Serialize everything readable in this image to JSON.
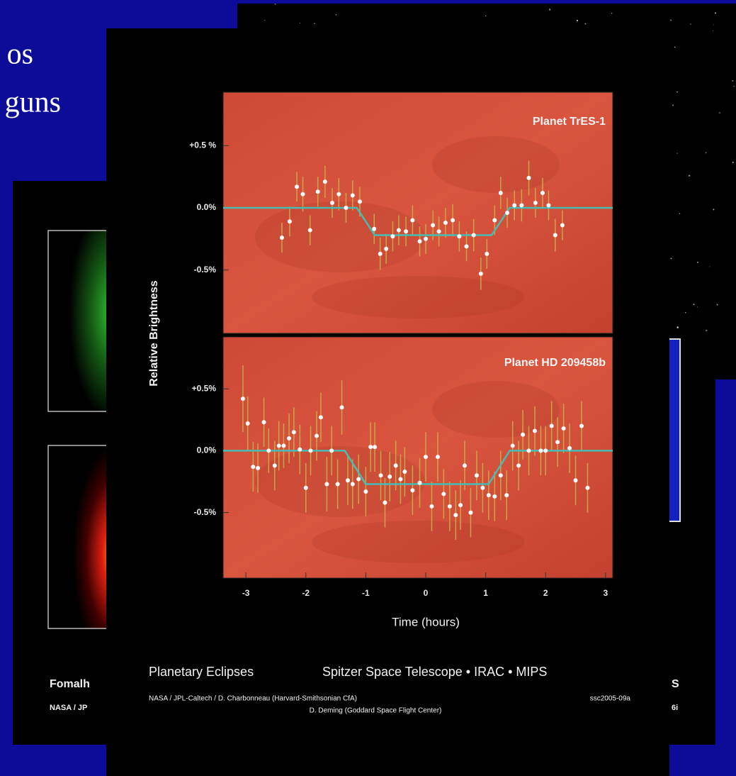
{
  "slide": {
    "text_lines": [
      "os",
      "guns"
    ]
  },
  "left_card": {
    "title": "Fomalh",
    "credit": "NASA / JP"
  },
  "right_card": {
    "title": "S",
    "credit": "6i"
  },
  "figure": {
    "title": "Planetary Eclipses",
    "subtitle": "Spitzer Space Telescope • IRAC • MIPS",
    "credits": [
      "NASA / JPL-Caltech / D. Charbonneau (Harvard-Smithsonian CfA)",
      "D. Deming (Goddard Space Flight Center)"
    ],
    "id": "ssc2005-09a",
    "ylabel": "Relative Brightness",
    "xlabel": "Time (hours)"
  },
  "chart_data": [
    {
      "type": "scatter",
      "title": "Planet TrES-1",
      "xlim": [
        -3.38,
        3.12
      ],
      "ylim": [
        -1.01,
        0.93
      ],
      "yticks": [
        {
          "value": 0.5,
          "label": "+0.5 %"
        },
        {
          "value": 0,
          "label": "0.0%"
        },
        {
          "value": -0.5,
          "label": "-0.5%"
        }
      ],
      "series": [
        {
          "color": "#ffffff",
          "error_color": "#c9a54a",
          "x": [
            -2.4,
            -2.27,
            -2.15,
            -2.05,
            -1.93,
            -1.8,
            -1.68,
            -1.56,
            -1.45,
            -1.33,
            -1.22,
            -1.1,
            -0.86,
            -0.76,
            -0.66,
            -0.55,
            -0.45,
            -0.33,
            -0.22,
            -0.1,
            0.0,
            0.12,
            0.22,
            0.33,
            0.45,
            0.56,
            0.68,
            0.8,
            0.92,
            1.02,
            1.15,
            1.25,
            1.36,
            1.48,
            1.6,
            1.72,
            1.83,
            1.95,
            2.05,
            2.16,
            2.28
          ],
          "values": [
            -0.24,
            -0.11,
            0.17,
            0.11,
            -0.18,
            0.13,
            0.21,
            0.04,
            0.11,
            0.0,
            0.1,
            0.05,
            -0.17,
            -0.37,
            -0.33,
            -0.23,
            -0.18,
            -0.19,
            -0.1,
            -0.27,
            -0.25,
            -0.14,
            -0.19,
            -0.12,
            -0.1,
            -0.23,
            -0.31,
            -0.22,
            -0.53,
            -0.37,
            -0.1,
            0.12,
            -0.04,
            0.02,
            0.02,
            0.24,
            0.04,
            0.12,
            0.02,
            -0.22,
            -0.14
          ],
          "errors": [
            0.12,
            0.12,
            0.12,
            0.14,
            0.12,
            0.12,
            0.13,
            0.12,
            0.13,
            0.12,
            0.12,
            0.12,
            0.12,
            0.13,
            0.12,
            0.12,
            0.12,
            0.12,
            0.12,
            0.12,
            0.12,
            0.12,
            0.12,
            0.12,
            0.13,
            0.12,
            0.12,
            0.13,
            0.13,
            0.12,
            0.12,
            0.13,
            0.12,
            0.12,
            0.13,
            0.14,
            0.12,
            0.12,
            0.12,
            0.13,
            0.12
          ]
        },
        {
          "type": "line",
          "color": "#45bdb4",
          "x": [
            -3.38,
            -1.15,
            -0.85,
            1.1,
            1.4,
            3.12
          ],
          "values": [
            0,
            0,
            -0.22,
            -0.22,
            0,
            0
          ]
        }
      ]
    },
    {
      "type": "scatter",
      "title": "Planet HD 209458b",
      "xlim": [
        -3.38,
        3.12
      ],
      "ylim": [
        -1.03,
        0.92
      ],
      "xticks": [
        -3,
        -2,
        -1,
        0,
        1,
        2,
        3
      ],
      "yticks": [
        {
          "value": 0.5,
          "label": "+0.5%"
        },
        {
          "value": 0,
          "label": "0.0%"
        },
        {
          "value": -0.5,
          "label": "-0.5%"
        }
      ],
      "series": [
        {
          "color": "#ffffff",
          "error_color": "#c9a54a",
          "x": [
            -3.05,
            -2.97,
            -2.88,
            -2.8,
            -2.7,
            -2.62,
            -2.52,
            -2.45,
            -2.37,
            -2.28,
            -2.2,
            -2.1,
            -2.0,
            -1.92,
            -1.82,
            -1.75,
            -1.65,
            -1.57,
            -1.47,
            -1.4,
            -1.3,
            -1.22,
            -1.12,
            -1.0,
            -0.92,
            -0.85,
            -0.75,
            -0.68,
            -0.6,
            -0.5,
            -0.42,
            -0.35,
            -0.22,
            -0.1,
            0.0,
            0.1,
            0.2,
            0.3,
            0.4,
            0.5,
            0.58,
            0.65,
            0.75,
            0.85,
            0.95,
            1.05,
            1.15,
            1.25,
            1.35,
            1.45,
            1.55,
            1.62,
            1.72,
            1.82,
            1.92,
            2.0,
            2.1,
            2.2,
            2.3,
            2.4,
            2.5,
            2.6,
            2.7
          ],
          "values": [
            0.42,
            0.22,
            -0.13,
            -0.14,
            0.23,
            0.0,
            -0.12,
            0.04,
            0.04,
            0.1,
            0.15,
            0.01,
            -0.3,
            0.0,
            0.12,
            0.27,
            -0.27,
            0.0,
            -0.27,
            0.35,
            -0.24,
            -0.27,
            -0.23,
            -0.33,
            0.03,
            0.03,
            -0.2,
            -0.42,
            -0.21,
            -0.12,
            -0.23,
            -0.17,
            -0.32,
            -0.26,
            -0.05,
            -0.45,
            -0.05,
            -0.35,
            -0.45,
            -0.52,
            -0.44,
            -0.12,
            -0.5,
            -0.2,
            -0.3,
            -0.36,
            -0.37,
            -0.2,
            -0.36,
            0.04,
            -0.12,
            0.13,
            0.0,
            0.16,
            0.0,
            0.0,
            0.2,
            0.07,
            0.18,
            0.02,
            -0.24,
            0.2,
            -0.3
          ],
          "errors": [
            0.27,
            0.22,
            0.2,
            0.2,
            0.2,
            0.18,
            0.2,
            0.2,
            0.18,
            0.2,
            0.2,
            0.2,
            0.2,
            0.2,
            0.2,
            0.2,
            0.22,
            0.2,
            0.2,
            0.22,
            0.2,
            0.2,
            0.2,
            0.2,
            0.2,
            0.2,
            0.2,
            0.2,
            0.2,
            0.2,
            0.2,
            0.2,
            0.2,
            0.2,
            0.2,
            0.2,
            0.2,
            0.2,
            0.2,
            0.2,
            0.2,
            0.2,
            0.2,
            0.2,
            0.2,
            0.2,
            0.2,
            0.2,
            0.2,
            0.2,
            0.2,
            0.2,
            0.2,
            0.2,
            0.2,
            0.2,
            0.2,
            0.2,
            0.2,
            0.2,
            0.2,
            0.2,
            0.2
          ]
        },
        {
          "type": "line",
          "color": "#45bdb4",
          "x": [
            -3.38,
            -1.35,
            -1.0,
            1.05,
            1.4,
            3.12
          ],
          "values": [
            0,
            0,
            -0.27,
            -0.27,
            0,
            0
          ]
        }
      ]
    }
  ]
}
